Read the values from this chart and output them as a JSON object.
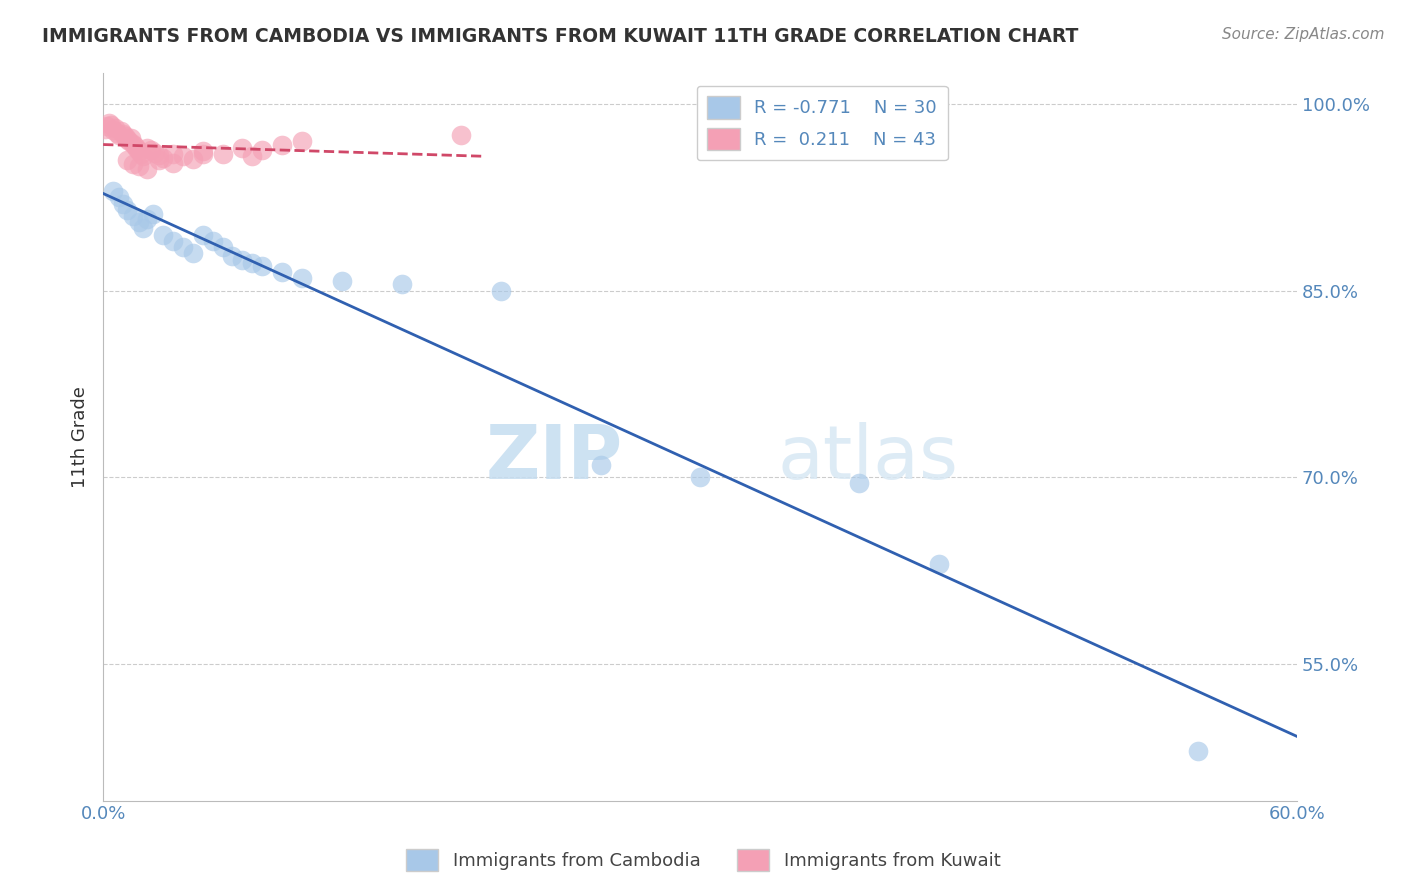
{
  "title": "IMMIGRANTS FROM CAMBODIA VS IMMIGRANTS FROM KUWAIT 11TH GRADE CORRELATION CHART",
  "source_text": "Source: ZipAtlas.com",
  "ylabel": "11th Grade",
  "xlim": [
    0.0,
    0.6
  ],
  "ylim": [
    0.44,
    1.025
  ],
  "yticks": [
    0.55,
    0.7,
    0.85,
    1.0
  ],
  "ytick_labels": [
    "55.0%",
    "70.0%",
    "85.0%",
    "100.0%"
  ],
  "xticks": [
    0.0,
    0.1,
    0.2,
    0.3,
    0.4,
    0.5,
    0.6
  ],
  "xtick_labels": [
    "0.0%",
    "",
    "",
    "",
    "",
    "",
    "60.0%"
  ],
  "watermark_zip": "ZIP",
  "watermark_atlas": "atlas",
  "legend_r_blue": "-0.771",
  "legend_n_blue": "30",
  "legend_r_pink": "0.211",
  "legend_n_pink": "43",
  "blue_color": "#a8c8e8",
  "pink_color": "#f4a0b5",
  "blue_line_color": "#3060b0",
  "pink_line_color": "#d04868",
  "blue_scatter_x": [
    0.005,
    0.008,
    0.01,
    0.012,
    0.015,
    0.018,
    0.02,
    0.022,
    0.025,
    0.03,
    0.035,
    0.04,
    0.045,
    0.05,
    0.055,
    0.06,
    0.065,
    0.07,
    0.075,
    0.08,
    0.09,
    0.1,
    0.12,
    0.15,
    0.2,
    0.25,
    0.3,
    0.38,
    0.42,
    0.55
  ],
  "blue_scatter_y": [
    0.93,
    0.925,
    0.92,
    0.915,
    0.91,
    0.905,
    0.9,
    0.908,
    0.912,
    0.895,
    0.89,
    0.885,
    0.88,
    0.895,
    0.89,
    0.885,
    0.878,
    0.875,
    0.872,
    0.87,
    0.865,
    0.86,
    0.858,
    0.855,
    0.85,
    0.71,
    0.7,
    0.695,
    0.63,
    0.48
  ],
  "pink_scatter_x": [
    0.001,
    0.002,
    0.003,
    0.004,
    0.005,
    0.006,
    0.007,
    0.008,
    0.009,
    0.01,
    0.011,
    0.012,
    0.013,
    0.014,
    0.015,
    0.016,
    0.017,
    0.018,
    0.019,
    0.02,
    0.022,
    0.024,
    0.026,
    0.028,
    0.03,
    0.035,
    0.04,
    0.045,
    0.05,
    0.06,
    0.07,
    0.08,
    0.09,
    0.1,
    0.012,
    0.015,
    0.018,
    0.022,
    0.028,
    0.035,
    0.05,
    0.075,
    0.18
  ],
  "pink_scatter_y": [
    0.98,
    0.982,
    0.985,
    0.983,
    0.979,
    0.981,
    0.977,
    0.975,
    0.978,
    0.976,
    0.974,
    0.972,
    0.97,
    0.973,
    0.968,
    0.966,
    0.964,
    0.962,
    0.96,
    0.958,
    0.965,
    0.963,
    0.961,
    0.959,
    0.957,
    0.96,
    0.958,
    0.956,
    0.962,
    0.96,
    0.965,
    0.963,
    0.967,
    0.97,
    0.955,
    0.952,
    0.95,
    0.948,
    0.955,
    0.953,
    0.96,
    0.958,
    0.975
  ],
  "background_color": "#ffffff",
  "grid_color": "#cccccc",
  "tick_color": "#5588bb",
  "title_color": "#333333"
}
